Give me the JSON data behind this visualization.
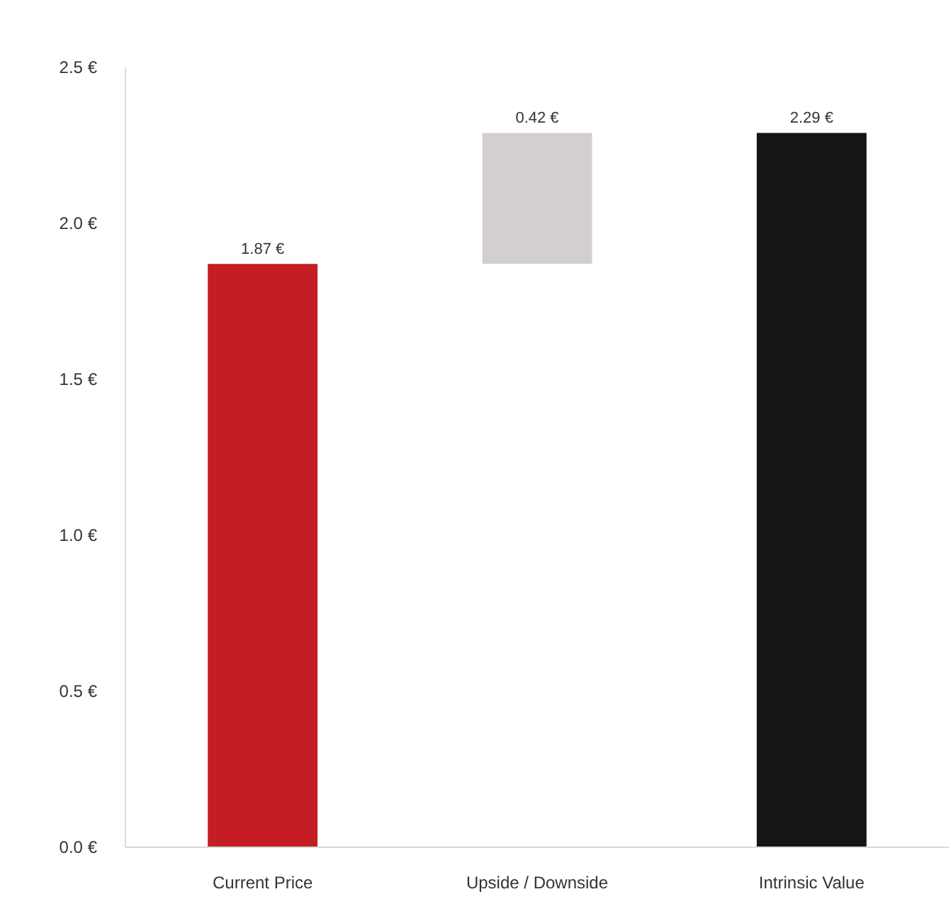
{
  "chart_data": {
    "type": "bar",
    "categories": [
      "Current Price",
      "Upside / Downside",
      "Intrinsic Value"
    ],
    "values": [
      1.87,
      0.42,
      2.29
    ],
    "base": [
      0,
      1.87,
      0
    ],
    "colors": [
      "#c41e24",
      "#d3cfd0",
      "#141515"
    ],
    "value_labels": [
      "1.87 €",
      "0.42 €",
      "2.29 €"
    ],
    "ylim": [
      0,
      2.5
    ],
    "yticks": [
      {
        "value": 0,
        "label": "0.0 €"
      },
      {
        "value": 0.5,
        "label": "0.5 €"
      },
      {
        "value": 1.0,
        "label": "1.0 €"
      },
      {
        "value": 1.5,
        "label": "1.5 €"
      },
      {
        "value": 2.0,
        "label": "2.0 €"
      },
      {
        "value": 2.5,
        "label": "2.5 €"
      }
    ],
    "grid": false
  }
}
